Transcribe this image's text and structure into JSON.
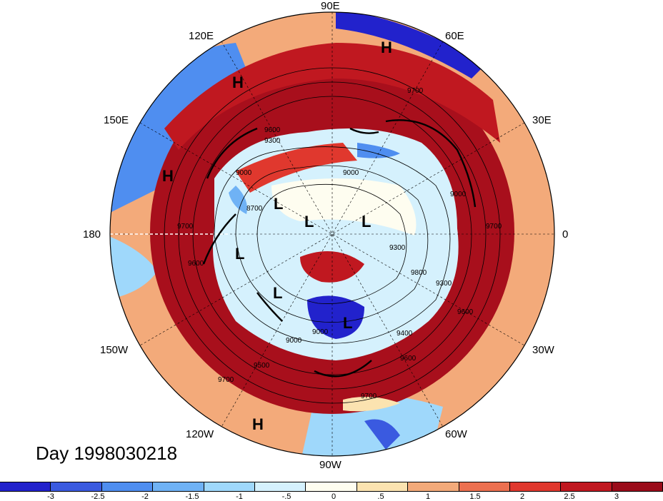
{
  "longitude_labels": {
    "n90e": "90E",
    "n120e": "120E",
    "n60e": "60E",
    "n150e": "150E",
    "n30e": "30E",
    "n180": "180",
    "n0": "0",
    "n150w": "150W",
    "n30w": "30W",
    "n120w": "120W",
    "n60w": "60W",
    "n90w": "90W"
  },
  "pressure_centers": [
    "H",
    "H",
    "H",
    "H",
    "L",
    "L",
    "L",
    "L",
    "L",
    "L"
  ],
  "contour_labels": [
    "9700",
    "9600",
    "9300",
    "9000",
    "8700",
    "9700",
    "9600",
    "9700",
    "9600",
    "9800",
    "9000",
    "9300",
    "9000",
    "9400",
    "9600",
    "9500",
    "9700",
    "9000",
    "9300",
    "9700",
    "9000"
  ],
  "day_label": "Day 1998030218",
  "colorbar": {
    "colors": [
      "#2222cc",
      "#3a5ae0",
      "#4f8ef0",
      "#6fb2f5",
      "#9fd8fb",
      "#d5f1fd",
      "#fefdf0",
      "#fbe3b0",
      "#f3aa7a",
      "#ec7050",
      "#e0382e",
      "#c01820",
      "#9a0c1a"
    ],
    "ticks": [
      "-3",
      "-2.5",
      "-2",
      "-1.5",
      "-1",
      "-.5",
      "0",
      ".5",
      "1",
      "1.5",
      "2",
      "2.5",
      "3"
    ]
  },
  "colors": {
    "strong_positive": "#a80f1c",
    "positive": "#e0382e",
    "negative": "#4f8ef0",
    "strong_negative": "#2222cc"
  }
}
